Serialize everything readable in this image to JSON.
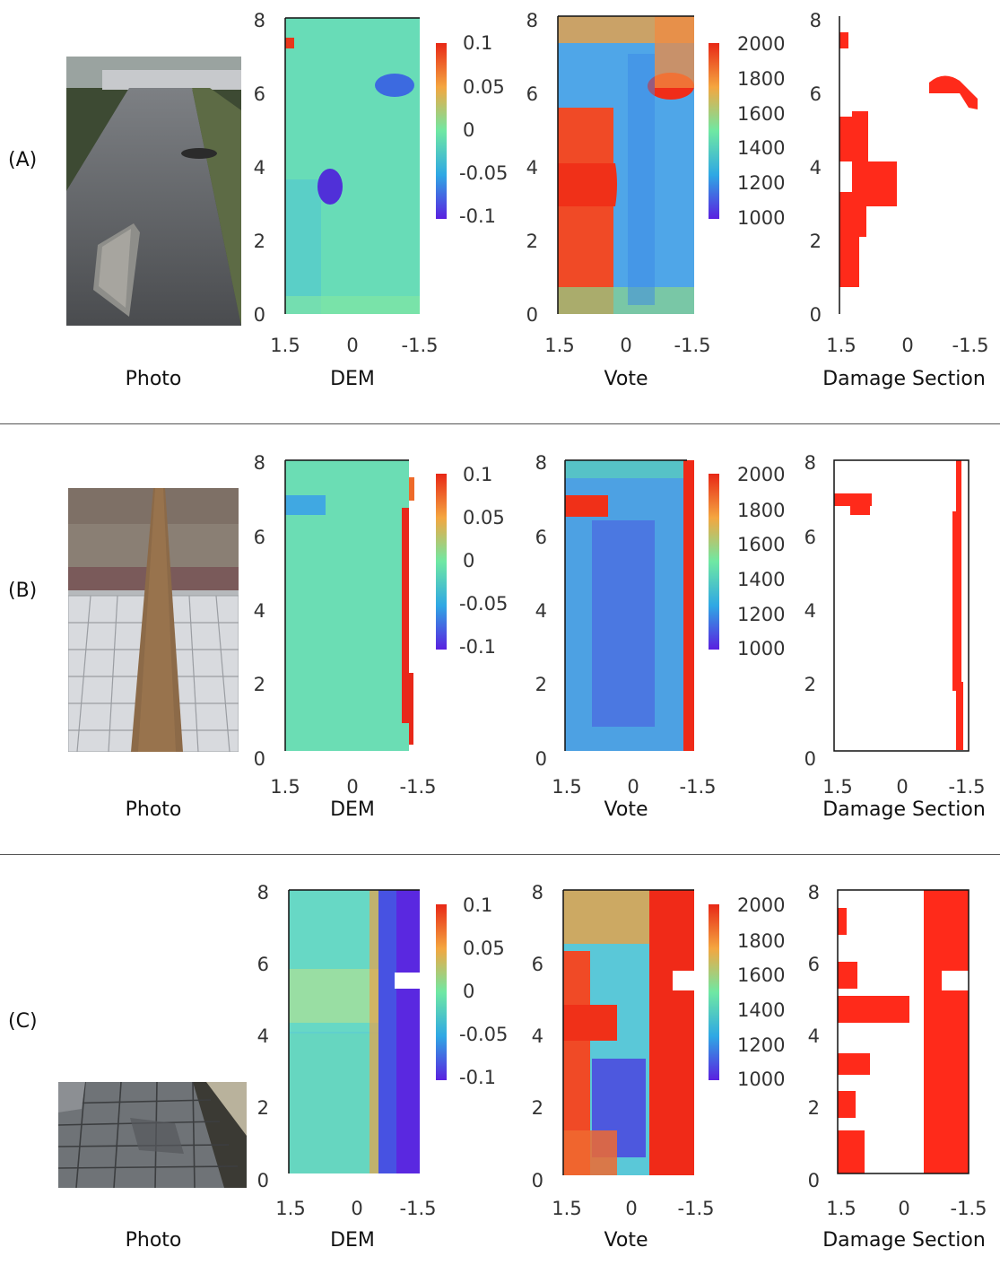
{
  "rows": [
    {
      "label": "(A)"
    },
    {
      "label": "(B)"
    },
    {
      "label": "(C)"
    }
  ],
  "captions": {
    "photo": "Photo",
    "dem": "DEM",
    "vote": "Vote",
    "damage": "Damage Section"
  },
  "axes": {
    "y_ticks": [
      "0",
      "2",
      "4",
      "6",
      "8"
    ],
    "x_ticks": [
      "1.5",
      "0",
      "-1.5"
    ]
  },
  "colorbars": {
    "dem_ticks": [
      "0.1",
      "0.05",
      "0",
      "-0.05",
      "-0.1"
    ],
    "vote_ticks": [
      "2000",
      "1800",
      "1600",
      "1400",
      "1200",
      "1000"
    ]
  },
  "colors": {
    "damage_red": "#ff2a1a",
    "turbo_low": "#4a2cd8",
    "turbo_mid": "#62e6a9",
    "turbo_high": "#f02a18"
  }
}
